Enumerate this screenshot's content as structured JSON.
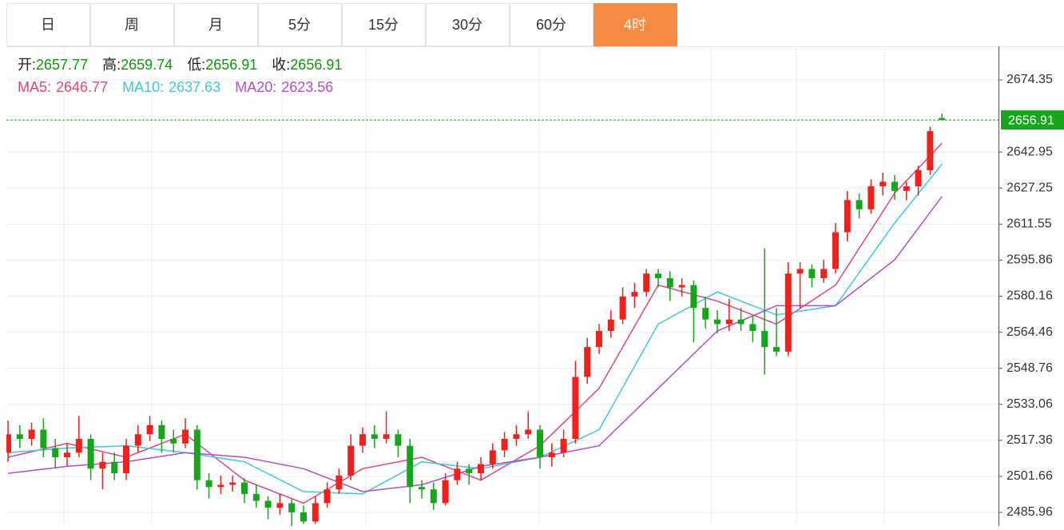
{
  "tabs": [
    "日",
    "周",
    "月",
    "5分",
    "15分",
    "30分",
    "60分",
    "4时"
  ],
  "active_tab": 7,
  "chart_data": {
    "type": "candlestick",
    "info_labels": {
      "open": "开:",
      "high": "高:",
      "low": "低:",
      "close": "收:"
    },
    "up_color": "#f0201a",
    "down_color": "#17a51c",
    "candles": [
      [
        2512,
        2526,
        2508,
        2520
      ],
      [
        2520,
        2524,
        2514,
        2518
      ],
      [
        2518,
        2525,
        2515,
        2522
      ],
      [
        2522,
        2527,
        2510,
        2514
      ],
      [
        2514,
        2518,
        2505,
        2510
      ],
      [
        2510,
        2516,
        2506,
        2512
      ],
      [
        2512,
        2528,
        2510,
        2518
      ],
      [
        2518,
        2520,
        2500,
        2505
      ],
      [
        2505,
        2512,
        2496,
        2508
      ],
      [
        2508,
        2512,
        2500,
        2503
      ],
      [
        2503,
        2518,
        2500,
        2515
      ],
      [
        2515,
        2524,
        2512,
        2520
      ],
      [
        2520,
        2528,
        2517,
        2524
      ],
      [
        2524,
        2526,
        2512,
        2518
      ],
      [
        2518,
        2522,
        2512,
        2516
      ],
      [
        2516,
        2527,
        2514,
        2522
      ],
      [
        2522,
        2524,
        2496,
        2500
      ],
      [
        2500,
        2503,
        2492,
        2497
      ],
      [
        2497,
        2502,
        2494,
        2498
      ],
      [
        2498,
        2502,
        2495,
        2499
      ],
      [
        2499,
        2501,
        2490,
        2494
      ],
      [
        2494,
        2498,
        2488,
        2491
      ],
      [
        2491,
        2493,
        2483,
        2488
      ],
      [
        2488,
        2494,
        2485,
        2490
      ],
      [
        2490,
        2492,
        2480,
        2486
      ],
      [
        2486,
        2489,
        2481,
        2482
      ],
      [
        2482,
        2493,
        2481,
        2490
      ],
      [
        2490,
        2499,
        2488,
        2496
      ],
      [
        2496,
        2505,
        2494,
        2502
      ],
      [
        2502,
        2520,
        2500,
        2515
      ],
      [
        2515,
        2523,
        2512,
        2520
      ],
      [
        2520,
        2524,
        2514,
        2518
      ],
      [
        2518,
        2530,
        2516,
        2520
      ],
      [
        2520,
        2522,
        2510,
        2515
      ],
      [
        2515,
        2518,
        2490,
        2497
      ],
      [
        2497,
        2500,
        2492,
        2496
      ],
      [
        2496,
        2499,
        2487,
        2490
      ],
      [
        2490,
        2503,
        2489,
        2500
      ],
      [
        2500,
        2508,
        2498,
        2505
      ],
      [
        2505,
        2507,
        2498,
        2503
      ],
      [
        2503,
        2510,
        2500,
        2507
      ],
      [
        2507,
        2516,
        2505,
        2513
      ],
      [
        2513,
        2521,
        2510,
        2518
      ],
      [
        2518,
        2524,
        2515,
        2520
      ],
      [
        2520,
        2530,
        2518,
        2522
      ],
      [
        2522,
        2524,
        2505,
        2510
      ],
      [
        2510,
        2516,
        2506,
        2512
      ],
      [
        2512,
        2522,
        2510,
        2518
      ],
      [
        2518,
        2552,
        2516,
        2545
      ],
      [
        2545,
        2562,
        2542,
        2558
      ],
      [
        2558,
        2568,
        2555,
        2565
      ],
      [
        2565,
        2574,
        2562,
        2570
      ],
      [
        2570,
        2584,
        2568,
        2580
      ],
      [
        2580,
        2586,
        2575,
        2582
      ],
      [
        2582,
        2592,
        2580,
        2590
      ],
      [
        2590,
        2592,
        2584,
        2588
      ],
      [
        2588,
        2591,
        2578,
        2584
      ],
      [
        2584,
        2588,
        2580,
        2585
      ],
      [
        2585,
        2587,
        2560,
        2575
      ],
      [
        2575,
        2580,
        2566,
        2570
      ],
      [
        2570,
        2574,
        2564,
        2568
      ],
      [
        2568,
        2579,
        2565,
        2570
      ],
      [
        2570,
        2575,
        2565,
        2568
      ],
      [
        2568,
        2572,
        2560,
        2565
      ],
      [
        2565,
        2601,
        2546,
        2558
      ],
      [
        2558,
        2575,
        2554,
        2556
      ],
      [
        2556,
        2595,
        2554,
        2590
      ],
      [
        2590,
        2595,
        2575,
        2592
      ],
      [
        2592,
        2594,
        2584,
        2588
      ],
      [
        2588,
        2596,
        2586,
        2592
      ],
      [
        2592,
        2612,
        2590,
        2608
      ],
      [
        2608,
        2626,
        2604,
        2622
      ],
      [
        2622,
        2625,
        2614,
        2618
      ],
      [
        2618,
        2631,
        2616,
        2628
      ],
      [
        2628,
        2634,
        2624,
        2630
      ],
      [
        2630,
        2633,
        2622,
        2626
      ],
      [
        2626,
        2630,
        2622,
        2628
      ],
      [
        2628,
        2637,
        2624,
        2635
      ],
      [
        2635,
        2654,
        2633,
        2652
      ],
      [
        2657.77,
        2659.74,
        2656.91,
        2656.91
      ]
    ],
    "ma_index": [
      0,
      5,
      10,
      15,
      20,
      25,
      30,
      35,
      40,
      45,
      50,
      55,
      60,
      65,
      70,
      75,
      79
    ],
    "series": [
      {
        "name": "MA5:",
        "color": "#e0457b",
        "values": [
          2510,
          2516,
          2510,
          2520,
          2500,
          2490,
          2505,
          2510,
          2500,
          2515,
          2540,
          2585,
          2578,
          2568,
          2585,
          2625,
          2646.77
        ]
      },
      {
        "name": "MA10:",
        "color": "#3fc8d8",
        "values": [
          2512,
          2514,
          2515,
          2512,
          2508,
          2495,
          2494,
          2508,
          2505,
          2510,
          2522,
          2568,
          2582,
          2572,
          2576,
          2612,
          2637.63
        ]
      },
      {
        "name": "MA20:",
        "color": "#b04fc8",
        "values": [
          2503,
          2506,
          2508,
          2512,
          2510,
          2505,
          2495,
          2498,
          2506,
          2510,
          2515,
          2540,
          2565,
          2576,
          2576,
          2596,
          2623.56
        ]
      }
    ],
    "ylim": [
      2480.04,
      2688.97
    ],
    "yticks": [
      2674.35,
      2642.95,
      2627.25,
      2611.55,
      2595.86,
      2580.16,
      2564.46,
      2548.76,
      2533.06,
      2517.36,
      2501.66,
      2485.96
    ],
    "grid": true
  }
}
